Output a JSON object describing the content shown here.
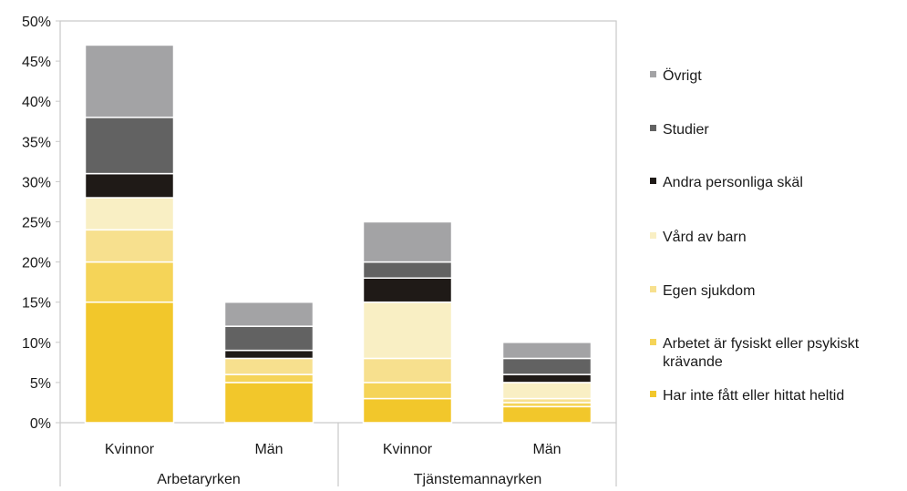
{
  "chart_data": {
    "type": "bar",
    "stacked": true,
    "groups": [
      {
        "label": "Arbetaryrken",
        "categories": [
          "Kvinnor",
          "Män"
        ]
      },
      {
        "label": "Tjänstemannayrken",
        "categories": [
          "Kvinnor",
          "Män"
        ]
      }
    ],
    "categories": [
      "Kvinnor",
      "Män",
      "Kvinnor",
      "Män"
    ],
    "series": [
      {
        "name": "Har inte fått eller hittat heltid",
        "color": "#f2c72b",
        "values": [
          15,
          5,
          3,
          2
        ]
      },
      {
        "name": "Arbetet är fysiskt eller psykiskt krävande",
        "color": "#f5d458",
        "values": [
          5,
          1,
          2,
          0.5
        ]
      },
      {
        "name": "Egen sjukdom",
        "color": "#f7e08e",
        "values": [
          4,
          2,
          3,
          0.5
        ]
      },
      {
        "name": "Vård av barn",
        "color": "#f9efc4",
        "values": [
          4,
          0,
          7,
          2
        ]
      },
      {
        "name": "Andra personliga skäl",
        "color": "#1f1a17",
        "values": [
          3,
          1,
          3,
          1
        ]
      },
      {
        "name": "Studier",
        "color": "#626262",
        "values": [
          7,
          3,
          2,
          2
        ]
      },
      {
        "name": "Övrigt",
        "color": "#a3a3a5",
        "values": [
          9,
          3,
          5,
          2
        ]
      }
    ],
    "y_ticks": [
      "0%",
      "5%",
      "10%",
      "15%",
      "20%",
      "25%",
      "30%",
      "35%",
      "40%",
      "45%",
      "50%"
    ],
    "ylim": [
      0,
      50
    ],
    "legend_position": "right",
    "legend_order": "reverse",
    "grid": false
  }
}
